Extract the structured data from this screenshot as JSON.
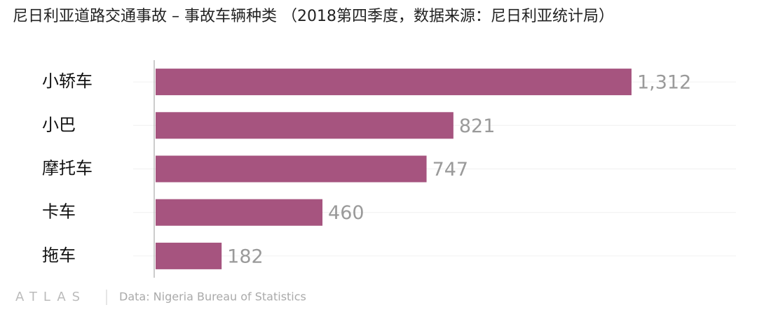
{
  "chart_data": {
    "type": "bar",
    "orientation": "horizontal",
    "title": "尼日利亚道路交通事故 – 事故车辆种类 （2018第四季度，数据来源：尼日利亚统计局）",
    "categories": [
      "小轿车",
      "小巴",
      "摩托车",
      "卡车",
      "拖车"
    ],
    "values": [
      1312,
      821,
      747,
      460,
      182
    ],
    "value_labels": [
      "1,312",
      "821",
      "747",
      "460",
      "182"
    ],
    "color": "#a6547f",
    "xlim": [
      0,
      1600
    ],
    "logo": "ATLAS",
    "source": "Data: Nigeria Bureau of Statistics"
  }
}
